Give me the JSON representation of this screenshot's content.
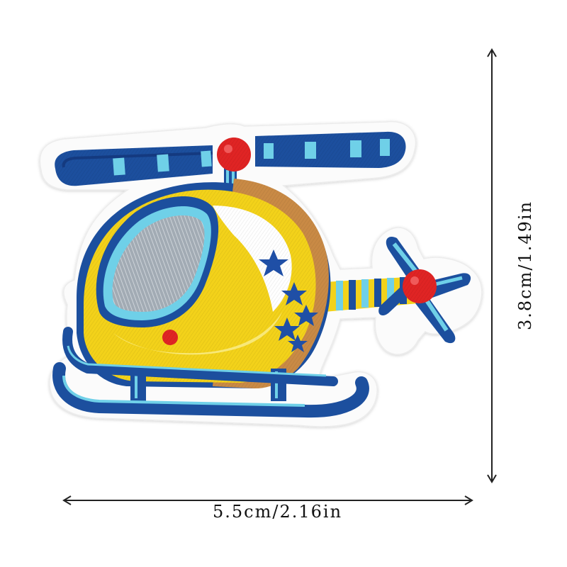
{
  "dimensions": {
    "width_label": "5.5cm/2.16in",
    "height_label": "3.8cm/1.49in"
  },
  "product": {
    "name_icon": "helicopter-patch-icon",
    "colors": {
      "felt_backing": "#fbfbfb",
      "navy": "#1c4f9e",
      "navy_dark": "#143a80",
      "sky": "#6fd0e8",
      "yellow": "#f3d21a",
      "yellow_light": "#f8e878",
      "orange": "#c98a45",
      "red": "#e02424",
      "window_grey": "#9aa3ac",
      "white_thread": "#ffffff",
      "star_blue": "#1f4fa6"
    }
  }
}
